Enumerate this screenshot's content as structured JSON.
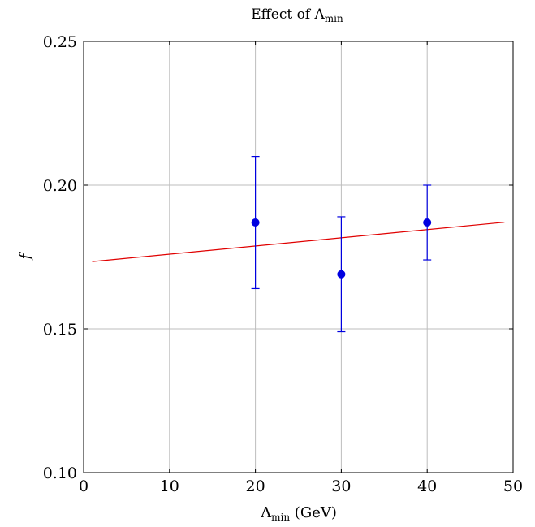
{
  "chart_data": {
    "type": "scatter",
    "title_main": "Effect of Λ",
    "title_sub": "min",
    "xlabel_main": "Λ",
    "xlabel_sub": "min",
    "xlabel_suffix": " (GeV)",
    "ylabel": "f",
    "xlim": [
      0,
      50
    ],
    "ylim": [
      0.1,
      0.25
    ],
    "grid": true,
    "x_ticks": [
      0,
      10,
      20,
      30,
      40,
      50
    ],
    "x_tick_labels": [
      "0",
      "10",
      "20",
      "30",
      "40",
      "50"
    ],
    "y_ticks": [
      0.1,
      0.15,
      0.2,
      0.25
    ],
    "y_tick_labels": [
      "0.10",
      "0.15",
      "0.20",
      "0.25"
    ],
    "series": [
      {
        "kind": "points-with-errorbars",
        "color": "#0000e0",
        "x": [
          20,
          30,
          40
        ],
        "y": [
          0.187,
          0.169,
          0.187
        ],
        "y_low": [
          0.164,
          0.149,
          0.174
        ],
        "y_high": [
          0.21,
          0.189,
          0.2
        ]
      },
      {
        "kind": "fit-line",
        "color": "#e00000",
        "x": [
          1,
          49
        ],
        "y": [
          0.1734,
          0.1871
        ]
      }
    ],
    "grid_color": "#bdbdbd"
  }
}
